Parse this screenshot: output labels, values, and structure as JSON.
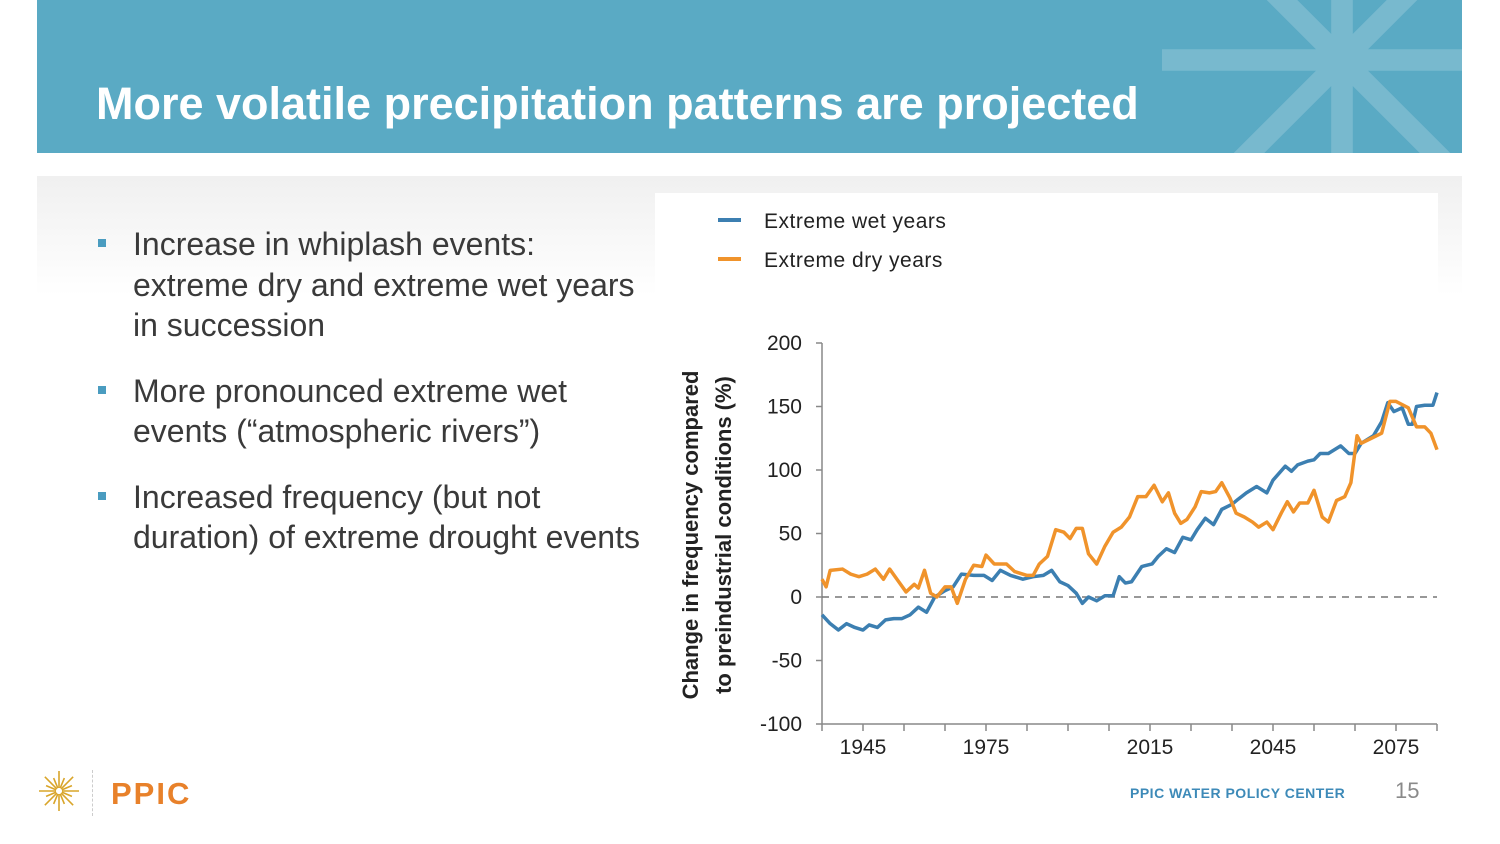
{
  "slide": {
    "title": "More volatile precipitation patterns are projected",
    "bullets": [
      "Increase in whiplash events: extreme dry and extreme wet years in succession",
      "More pronounced extreme wet events (“atmospheric rivers”)",
      "Increased frequency (but not duration) of extreme drought events"
    ],
    "footer": {
      "logo_text": "PPIC",
      "center_name": "PPIC WATER POLICY CENTER",
      "page_number": "15"
    },
    "colors": {
      "banner": "#5aaac4",
      "bullet": "#4a9cc0",
      "logo": "#e8812a"
    }
  },
  "chart_data": {
    "type": "line",
    "title": "",
    "xlabel": "",
    "ylabel": "Change in frequency compared to preindustrial conditions (%)",
    "ylabel_lines": [
      "Change in frequency compared",
      "to preindustrial conditions (%)"
    ],
    "xlim": [
      1935,
      2085
    ],
    "ylim": [
      -100,
      200
    ],
    "yticks": [
      200,
      150,
      100,
      50,
      0,
      -50,
      -100
    ],
    "xticks": [
      1935,
      1945,
      1955,
      1965,
      1975,
      1985,
      1995,
      2005,
      2015,
      2025,
      2035,
      2045,
      2055,
      2065,
      2075,
      2085
    ],
    "xtick_labels": [
      {
        "x": 1945,
        "label": "1945"
      },
      {
        "x": 1975,
        "label": "1975"
      },
      {
        "x": 2015,
        "label": "2015"
      },
      {
        "x": 2045,
        "label": "2045"
      },
      {
        "x": 2075,
        "label": "2075"
      }
    ],
    "reference_line": {
      "y": 0,
      "style": "dashed"
    },
    "grid": false,
    "legend_position": "top-left",
    "series": [
      {
        "name": "Extreme wet years",
        "color": "#3c7fb1",
        "points": [
          [
            1935,
            -14
          ],
          [
            1937,
            -21
          ],
          [
            1939,
            -26
          ],
          [
            1941,
            -21
          ],
          [
            1943,
            -24
          ],
          [
            1945,
            -26
          ],
          [
            1946.5,
            -22
          ],
          [
            1948.5,
            -24
          ],
          [
            1950.5,
            -18
          ],
          [
            1952.5,
            -17
          ],
          [
            1954.5,
            -17
          ],
          [
            1956.5,
            -14
          ],
          [
            1958.5,
            -8
          ],
          [
            1960.5,
            -12
          ],
          [
            1962.5,
            0
          ],
          [
            1965,
            5
          ],
          [
            1967,
            8
          ],
          [
            1969,
            18
          ],
          [
            1972,
            17
          ],
          [
            1974.5,
            17
          ],
          [
            1976.5,
            13
          ],
          [
            1978.5,
            21
          ],
          [
            1981,
            17
          ],
          [
            1984,
            14
          ],
          [
            1986.5,
            16
          ],
          [
            1989,
            17
          ],
          [
            1991,
            21
          ],
          [
            1993,
            12
          ],
          [
            1995,
            9
          ],
          [
            1997,
            3
          ],
          [
            1998.5,
            -5
          ],
          [
            2000,
            0
          ],
          [
            2002,
            -3
          ],
          [
            2004,
            1
          ],
          [
            2006,
            1
          ],
          [
            2007.5,
            16
          ],
          [
            2009,
            11
          ],
          [
            2010.5,
            12
          ],
          [
            2013,
            24
          ],
          [
            2015.5,
            26
          ],
          [
            2017,
            32
          ],
          [
            2019,
            38
          ],
          [
            2021,
            35
          ],
          [
            2023,
            47
          ],
          [
            2025,
            45
          ],
          [
            2026.5,
            53
          ],
          [
            2028.5,
            62
          ],
          [
            2030.5,
            57
          ],
          [
            2032.5,
            69
          ],
          [
            2035,
            73
          ],
          [
            2036.5,
            77
          ],
          [
            2038.5,
            82
          ],
          [
            2041,
            87
          ],
          [
            2043.5,
            82
          ],
          [
            2045,
            92
          ],
          [
            2048,
            103
          ],
          [
            2049.5,
            99
          ],
          [
            2051,
            104
          ],
          [
            2053.5,
            107
          ],
          [
            2055,
            108
          ],
          [
            2056.5,
            113
          ],
          [
            2058.5,
            113
          ],
          [
            2061.5,
            119
          ],
          [
            2063.5,
            113
          ],
          [
            2065,
            113
          ],
          [
            2066.5,
            121
          ],
          [
            2069.5,
            127
          ],
          [
            2071.5,
            138
          ],
          [
            2073,
            153
          ],
          [
            2074.5,
            146
          ],
          [
            2076.5,
            149
          ],
          [
            2078,
            136
          ],
          [
            2079,
            136
          ],
          [
            2080,
            150
          ],
          [
            2082,
            151
          ],
          [
            2084,
            151
          ],
          [
            2085,
            161
          ]
        ]
      },
      {
        "name": "Extreme dry years",
        "color": "#f0932b",
        "points": [
          [
            1935,
            14
          ],
          [
            1936,
            8
          ],
          [
            1937,
            21
          ],
          [
            1940,
            22
          ],
          [
            1942,
            18
          ],
          [
            1944,
            16
          ],
          [
            1946,
            18
          ],
          [
            1948,
            22
          ],
          [
            1950,
            14
          ],
          [
            1951.5,
            22
          ],
          [
            1953.5,
            13
          ],
          [
            1955.5,
            4
          ],
          [
            1957.5,
            10
          ],
          [
            1958.5,
            7
          ],
          [
            1960,
            21
          ],
          [
            1961.5,
            3
          ],
          [
            1963,
            0
          ],
          [
            1965,
            8
          ],
          [
            1966.5,
            8
          ],
          [
            1968,
            -5
          ],
          [
            1970,
            14
          ],
          [
            1972,
            25
          ],
          [
            1974,
            24
          ],
          [
            1975,
            33
          ],
          [
            1977,
            26
          ],
          [
            1980,
            26
          ],
          [
            1982,
            20
          ],
          [
            1985,
            17
          ],
          [
            1986.5,
            17
          ],
          [
            1988,
            26
          ],
          [
            1990,
            32
          ],
          [
            1992,
            53
          ],
          [
            1994,
            51
          ],
          [
            1995.5,
            46
          ],
          [
            1997,
            54
          ],
          [
            1998.5,
            54
          ],
          [
            2000,
            34
          ],
          [
            2002,
            26
          ],
          [
            2004,
            40
          ],
          [
            2006,
            51
          ],
          [
            2008,
            55
          ],
          [
            2010,
            63
          ],
          [
            2012,
            79
          ],
          [
            2014,
            79
          ],
          [
            2016,
            88
          ],
          [
            2018,
            75
          ],
          [
            2019.5,
            82
          ],
          [
            2021,
            66
          ],
          [
            2022.5,
            58
          ],
          [
            2024,
            61
          ],
          [
            2026,
            71
          ],
          [
            2027.5,
            83
          ],
          [
            2029.5,
            82
          ],
          [
            2031,
            83
          ],
          [
            2032.5,
            90
          ],
          [
            2034.5,
            78
          ],
          [
            2036,
            66
          ],
          [
            2038,
            63
          ],
          [
            2040,
            59
          ],
          [
            2041.5,
            55
          ],
          [
            2043.5,
            59
          ],
          [
            2045,
            53
          ],
          [
            2047,
            66
          ],
          [
            2048.5,
            75
          ],
          [
            2050,
            67
          ],
          [
            2051.5,
            74
          ],
          [
            2053.5,
            74
          ],
          [
            2055,
            84
          ],
          [
            2057,
            63
          ],
          [
            2058.5,
            59
          ],
          [
            2060.5,
            76
          ],
          [
            2062.5,
            79
          ],
          [
            2064,
            90
          ],
          [
            2065.5,
            127
          ],
          [
            2066.5,
            121
          ],
          [
            2069,
            125
          ],
          [
            2071.5,
            129
          ],
          [
            2073.5,
            154
          ],
          [
            2075,
            154
          ],
          [
            2078,
            149
          ],
          [
            2080,
            134
          ],
          [
            2082,
            134
          ],
          [
            2083.5,
            129
          ],
          [
            2085,
            116
          ]
        ]
      }
    ]
  }
}
